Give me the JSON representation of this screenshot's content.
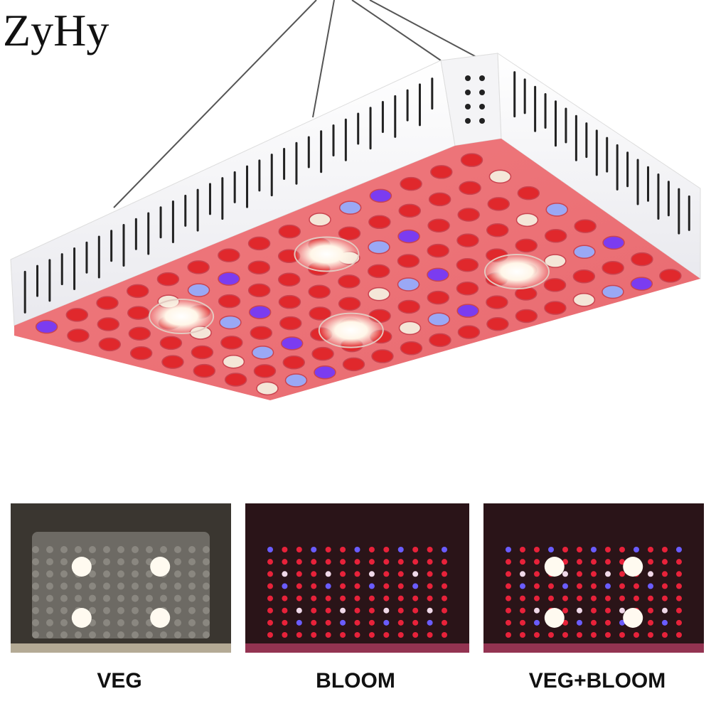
{
  "brand": "ZyHy",
  "modes": [
    {
      "label": "VEG"
    },
    {
      "label": "BLOOM"
    },
    {
      "label": "VEG+BLOOM"
    }
  ]
}
